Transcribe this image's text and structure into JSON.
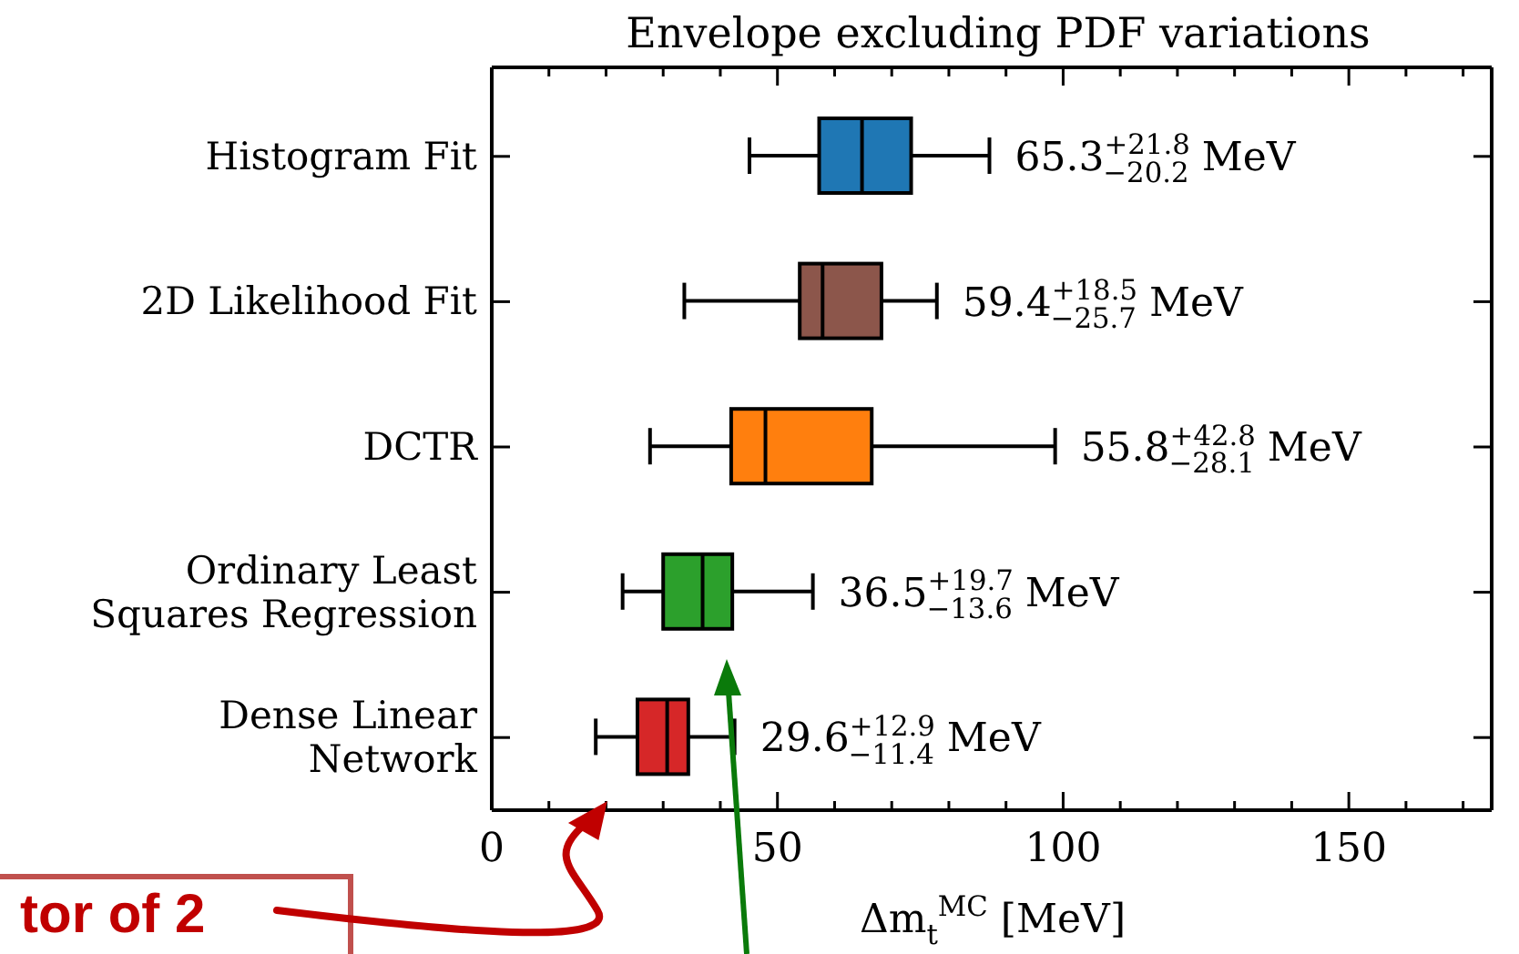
{
  "chart_data": {
    "type": "box",
    "orientation": "horizontal",
    "title": "Envelope excluding PDF variations",
    "xlabel": "Δm$_{t}$$^{MC}$ [MeV]",
    "categories": [
      "Histogram Fit",
      "2D Likelihood Fit",
      "DCTR",
      "Ordinary Least\nSquares Regression",
      "Dense Linear\nNetwork"
    ],
    "colors": [
      "#1f77b4",
      "#8c564b",
      "#ff7f0e",
      "#2ca02c",
      "#d62728"
    ],
    "boxes": [
      {
        "low": 45.1,
        "q1": 57.3,
        "median": 64.8,
        "q3": 73.4,
        "high": 87.1
      },
      {
        "low": 33.7,
        "q1": 53.9,
        "median": 57.9,
        "q3": 68.2,
        "high": 77.9
      },
      {
        "low": 27.7,
        "q1": 41.9,
        "median": 47.9,
        "q3": 66.5,
        "high": 98.6
      },
      {
        "low": 22.9,
        "q1": 30.0,
        "median": 36.9,
        "q3": 42.1,
        "high": 56.2
      },
      {
        "low": 18.2,
        "q1": 25.5,
        "median": 30.7,
        "q3": 34.4,
        "high": 42.5
      }
    ],
    "xlim": [
      0,
      175
    ],
    "xticks": [
      0,
      {
        "value": 10,
        "label": null
      },
      {
        "value": 20,
        "label": null
      },
      {
        "value": 30,
        "label": null
      },
      {
        "value": 40,
        "label": null
      },
      50,
      {
        "value": 60,
        "label": null
      },
      {
        "value": 70,
        "label": null
      },
      {
        "value": 80,
        "label": null
      },
      {
        "value": 90,
        "label": null
      },
      100,
      {
        "value": 110,
        "label": null
      },
      {
        "value": 120,
        "label": null
      },
      {
        "value": 130,
        "label": null
      },
      {
        "value": 140,
        "label": null
      },
      150,
      {
        "value": 160,
        "label": null
      },
      {
        "value": 170,
        "label": null
      }
    ],
    "annotations": [
      {
        "text": "65.3$^{+21.8}$$_{−20.2}$ MeV",
        "x": 87.1,
        "y": "Histogram Fit"
      },
      {
        "text": "59.4$^{+18.5}$$_{−25.7}$ MeV",
        "x": 77.9,
        "y": "2D Likelihood Fit"
      },
      {
        "text": "55.8$^{+42.8}$$_{−28.1}$ MeV",
        "x": 98.6,
        "y": "DCTR"
      },
      {
        "text": "36.5$^{+19.7}$$_{−13.6}$ MeV",
        "x": 56.2,
        "y": "Ordinary Least\nSquares Regression"
      },
      {
        "text": "29.6$^{+12.9}$$_{−11.4}$ MeV",
        "x": 42.5,
        "y": "Dense Linear\nNetwork"
      },
      "tor of 2"
    ]
  }
}
